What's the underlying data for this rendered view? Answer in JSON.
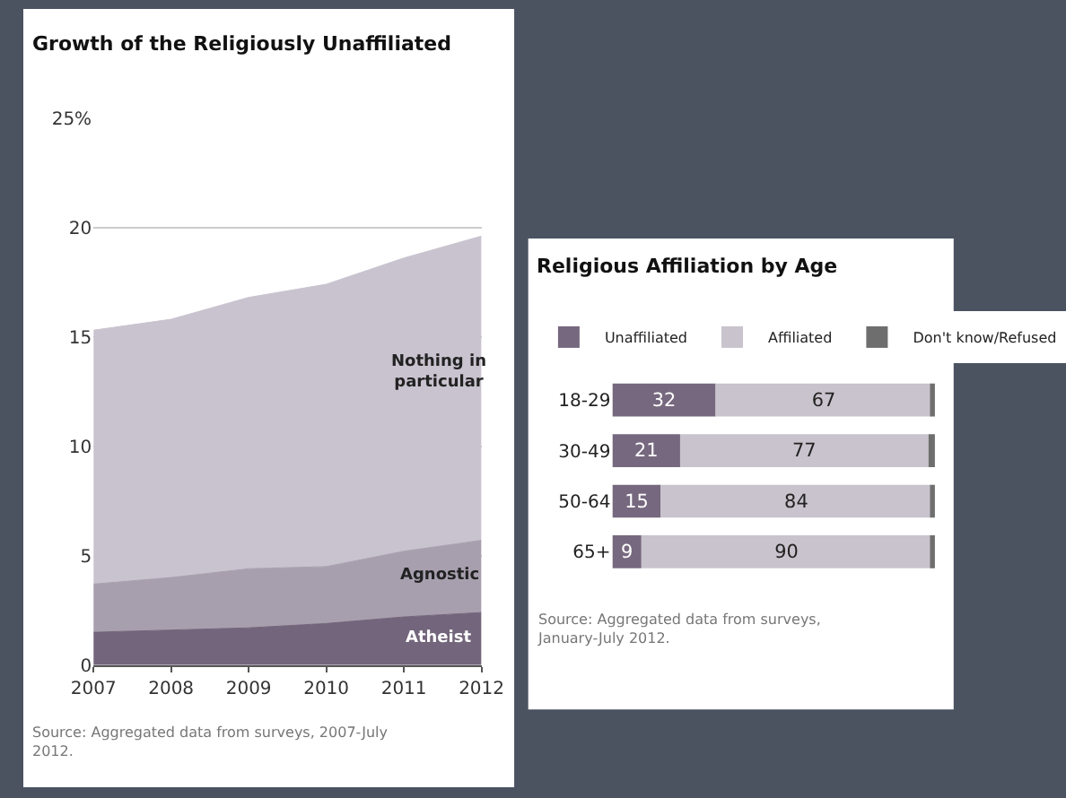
{
  "chart_data": [
    {
      "type": "area",
      "stacked": true,
      "title": "Growth of the Religiously Unaffiliated",
      "x": [
        2007,
        2008,
        2009,
        2010,
        2011,
        2012
      ],
      "series": [
        {
          "name": "Atheist",
          "color": "#73657b",
          "values": [
            1.5,
            1.6,
            1.7,
            1.9,
            2.2,
            2.4
          ]
        },
        {
          "name": "Agnostic",
          "color": "#a89fae",
          "values": [
            2.2,
            2.4,
            2.7,
            2.6,
            3.0,
            3.3
          ]
        },
        {
          "name": "Nothing in particular",
          "color": "#c9c3cf",
          "values": [
            11.6,
            11.8,
            12.4,
            12.9,
            13.4,
            13.9
          ]
        }
      ],
      "xlim": [
        2007,
        2012
      ],
      "xticks": [
        2007,
        2008,
        2009,
        2010,
        2011,
        2012
      ],
      "ylim": [
        0,
        25
      ],
      "yticks": [
        0,
        5,
        10,
        15,
        20,
        {
          "value": 25,
          "label": "25%"
        }
      ],
      "grid": "y",
      "legend": false,
      "annotations": [
        "Source: Aggregated data from surveys, 2007-July 2012."
      ]
    },
    {
      "type": "bar",
      "orientation": "horizontal",
      "stacked": true,
      "title": "Religious Affiliation by Age",
      "categories": [
        "18-29",
        "30-49",
        "50-64",
        "65+"
      ],
      "series": [
        {
          "name": "Unaffiliated",
          "color": "#76687e",
          "values": [
            32,
            21,
            15,
            9
          ],
          "value_labels": [
            "32",
            "21",
            "15",
            "9"
          ]
        },
        {
          "name": "Affiliated",
          "color": "#c8c3cc",
          "values": [
            67,
            77,
            84,
            90
          ],
          "value_labels": [
            "67",
            "77",
            "84",
            "90"
          ]
        },
        {
          "name": "Don't know/Refused",
          "color": "#6e6e6e",
          "values": [
            1,
            2,
            1,
            1
          ]
        }
      ],
      "xlim": [
        0,
        100
      ],
      "tick_labels": "y",
      "legend": "top",
      "grid": false,
      "annotations": [
        "Source: Aggregated data from surveys, January-July 2012."
      ]
    }
  ]
}
